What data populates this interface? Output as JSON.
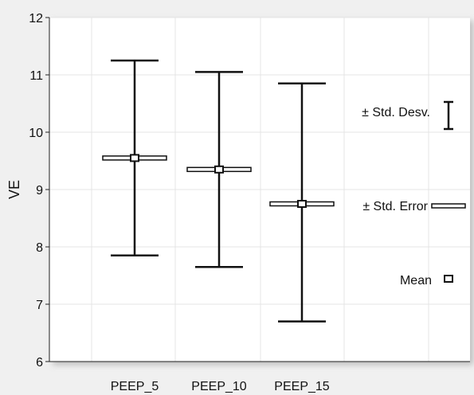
{
  "chart_data": {
    "type": "box",
    "ylabel": "VE",
    "xlabel": "",
    "ylim": [
      6,
      12
    ],
    "yticks": [
      6,
      7,
      8,
      9,
      10,
      11,
      12
    ],
    "categories": [
      "PEEP_5",
      "PEEP_10",
      "PEEP_15"
    ],
    "series": [
      {
        "category": "PEEP_5",
        "mean": 9.55,
        "se_low": 9.5,
        "se_high": 9.6,
        "sd_low": 7.85,
        "sd_high": 11.25
      },
      {
        "category": "PEEP_10",
        "mean": 9.35,
        "se_low": 9.3,
        "se_high": 9.4,
        "sd_low": 7.65,
        "sd_high": 11.05
      },
      {
        "category": "PEEP_15",
        "mean": 8.75,
        "se_low": 8.7,
        "se_high": 8.8,
        "sd_low": 6.7,
        "sd_high": 10.85
      }
    ],
    "legend": {
      "sd_label": "± Std. Desv.",
      "se_label": "± Std. Error",
      "mean_label": "Mean",
      "position": "right"
    },
    "grid": true
  }
}
